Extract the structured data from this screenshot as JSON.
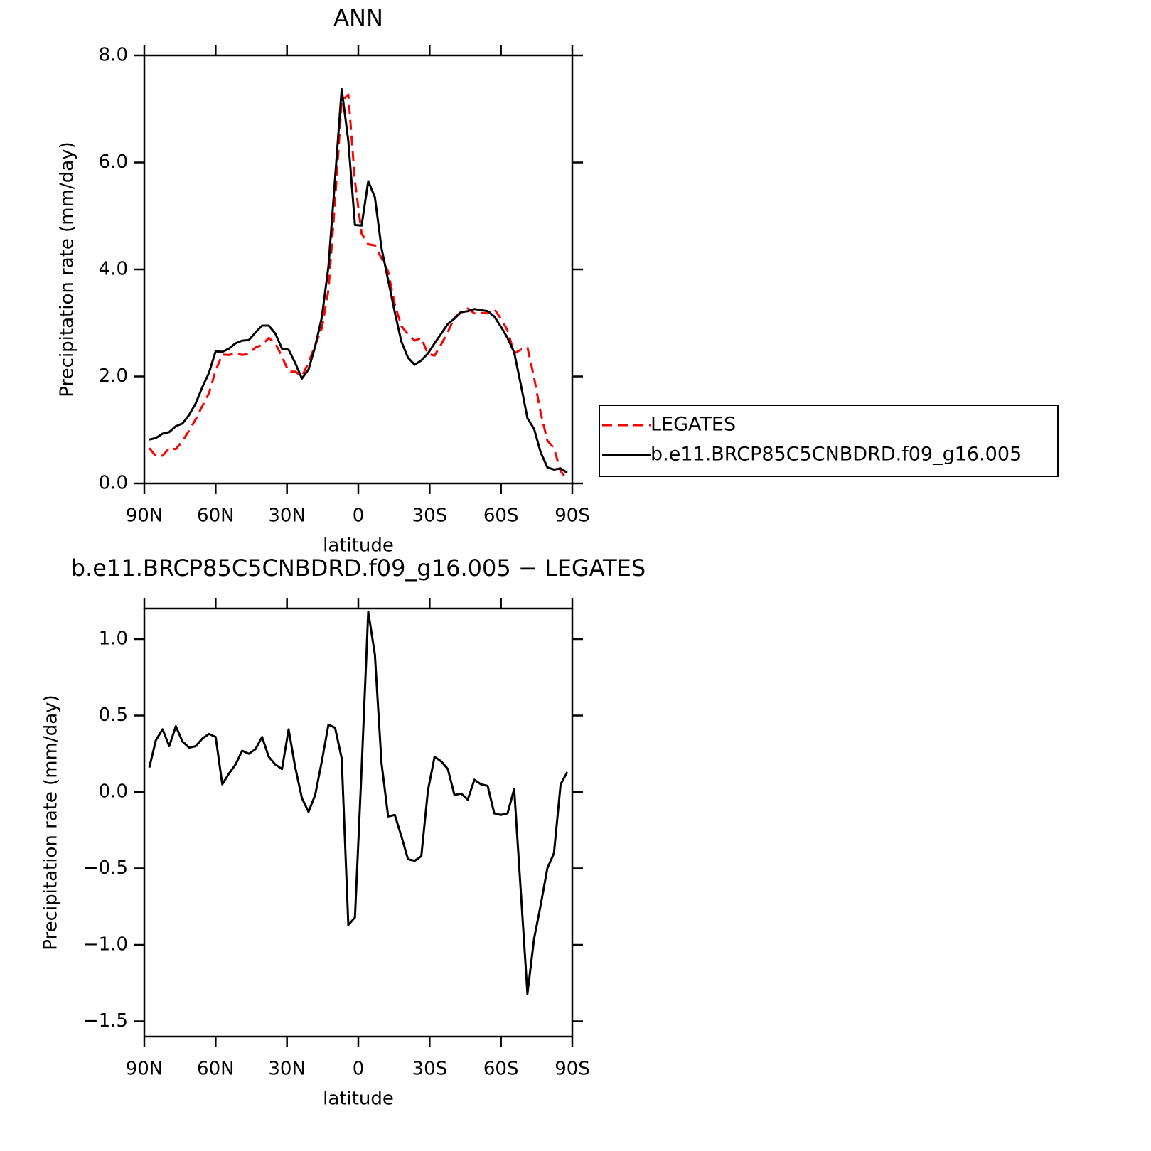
{
  "chart_data": [
    {
      "type": "line",
      "title": "ANN",
      "y_label": "Precipitation rate (mm/day)",
      "x_label": "latitude",
      "xlim": [
        90,
        -90
      ],
      "xticks": [
        {
          "value": 90,
          "label": "90N"
        },
        {
          "value": 60,
          "label": "60N"
        },
        {
          "value": 30,
          "label": "30N"
        },
        0,
        {
          "value": -30,
          "label": "30S"
        },
        {
          "value": -60,
          "label": "60S"
        },
        {
          "value": -90,
          "label": "90S"
        }
      ],
      "ylim": [
        0,
        8
      ],
      "yticks": [
        {
          "value": 0,
          "label": "0.0"
        },
        {
          "value": 2,
          "label": "2.0"
        },
        {
          "value": 4,
          "label": "4.0"
        },
        {
          "value": 6,
          "label": "6.0"
        },
        {
          "value": 8,
          "label": "8.0"
        }
      ],
      "legend": "right",
      "x": [
        87.9,
        85.11,
        82.32,
        79.53,
        76.74,
        73.95,
        71.16,
        68.37,
        65.58,
        62.79,
        60.0,
        57.21,
        54.42,
        51.63,
        48.84,
        46.05,
        43.26,
        40.47,
        37.68,
        34.89,
        32.1,
        29.31,
        26.52,
        23.73,
        20.94,
        18.15,
        15.36,
        12.57,
        9.78,
        6.99,
        4.2,
        1.41,
        -1.38,
        -4.17,
        -6.96,
        -9.75,
        -12.54,
        -15.33,
        -18.12,
        -20.91,
        -23.7,
        -26.49,
        -29.28,
        -32.07,
        -34.86,
        -37.65,
        -40.44,
        -43.23,
        -46.02,
        -48.81,
        -51.6,
        -54.39,
        -57.18,
        -59.97,
        -62.76,
        -65.55,
        -68.34,
        -71.13,
        -73.92,
        -76.71,
        -79.5,
        -82.29,
        -85.08,
        -87.87
      ],
      "series": [
        {
          "name": "LEGATES",
          "color": "#ff0000",
          "dash": "dashed",
          "values": [
            0.66,
            0.51,
            0.52,
            0.66,
            0.64,
            0.79,
            0.99,
            1.2,
            1.45,
            1.69,
            2.11,
            2.41,
            2.4,
            2.44,
            2.4,
            2.43,
            2.54,
            2.59,
            2.72,
            2.62,
            2.37,
            2.09,
            2.09,
            2.0,
            2.26,
            2.58,
            2.9,
            3.61,
            5.28,
            7.15,
            7.27,
            5.65,
            4.67,
            4.47,
            4.45,
            4.21,
            3.96,
            3.35,
            2.94,
            2.79,
            2.67,
            2.72,
            2.42,
            2.39,
            2.6,
            2.83,
            3.1,
            3.21,
            3.27,
            3.18,
            3.19,
            3.18,
            3.26,
            3.08,
            2.86,
            2.43,
            2.5,
            2.54,
            1.98,
            1.32,
            0.8,
            0.66,
            0.23,
            0.07
          ]
        },
        {
          "name": "b.e11.BRCP85C5CNBDRD.f09_g16.005",
          "color": "#000000",
          "dash": "solid",
          "values": [
            0.82,
            0.85,
            0.93,
            0.96,
            1.07,
            1.12,
            1.28,
            1.5,
            1.8,
            2.07,
            2.47,
            2.46,
            2.52,
            2.62,
            2.67,
            2.68,
            2.82,
            2.95,
            2.95,
            2.8,
            2.52,
            2.5,
            2.25,
            1.96,
            2.13,
            2.56,
            3.1,
            4.05,
            5.7,
            7.37,
            6.4,
            4.83,
            4.82,
            5.65,
            5.35,
            4.4,
            3.8,
            3.2,
            2.65,
            2.35,
            2.22,
            2.3,
            2.43,
            2.62,
            2.8,
            2.98,
            3.08,
            3.2,
            3.22,
            3.26,
            3.24,
            3.22,
            3.12,
            2.93,
            2.72,
            2.45,
            1.85,
            1.22,
            1.02,
            0.58,
            0.3,
            0.26,
            0.28,
            0.2
          ]
        }
      ]
    },
    {
      "type": "line",
      "title": "b.e11.BRCP85C5CNBDRD.f09_g16.005 − LEGATES",
      "y_label": "Precipitation rate (mm/day)",
      "x_label": "latitude",
      "xlim": [
        90,
        -90
      ],
      "xticks": [
        {
          "value": 90,
          "label": "90N"
        },
        {
          "value": 60,
          "label": "60N"
        },
        {
          "value": 30,
          "label": "30N"
        },
        0,
        {
          "value": -30,
          "label": "30S"
        },
        {
          "value": -60,
          "label": "60S"
        },
        {
          "value": -90,
          "label": "90S"
        }
      ],
      "ylim": [
        -1.6,
        1.2
      ],
      "yticks": [
        {
          "value": -1.5,
          "label": "−1.5"
        },
        {
          "value": -1,
          "label": "−1.0"
        },
        {
          "value": -0.5,
          "label": "−0.5"
        },
        {
          "value": 0,
          "label": "0.0"
        },
        {
          "value": 0.5,
          "label": "0.5"
        },
        {
          "value": 1,
          "label": "1.0"
        }
      ],
      "color": "#000000",
      "x": [
        87.9,
        85.11,
        82.32,
        79.53,
        76.74,
        73.95,
        71.16,
        68.37,
        65.58,
        62.79,
        60.0,
        57.21,
        54.42,
        51.63,
        48.84,
        46.05,
        43.26,
        40.47,
        37.68,
        34.89,
        32.1,
        29.31,
        26.52,
        23.73,
        20.94,
        18.15,
        15.36,
        12.57,
        9.78,
        6.99,
        4.2,
        1.41,
        -1.38,
        -4.17,
        -6.96,
        -9.75,
        -12.54,
        -15.33,
        -18.12,
        -20.91,
        -23.7,
        -26.49,
        -29.28,
        -32.07,
        -34.86,
        -37.65,
        -40.44,
        -43.23,
        -46.02,
        -48.81,
        -51.6,
        -54.39,
        -57.18,
        -59.97,
        -62.76,
        -65.55,
        -68.34,
        -71.13,
        -73.92,
        -76.71,
        -79.5,
        -82.29,
        -85.08,
        -87.87
      ],
      "values": [
        0.16,
        0.34,
        0.41,
        0.3,
        0.43,
        0.33,
        0.29,
        0.3,
        0.35,
        0.38,
        0.36,
        0.05,
        0.12,
        0.18,
        0.27,
        0.25,
        0.28,
        0.36,
        0.23,
        0.18,
        0.15,
        0.41,
        0.16,
        -0.04,
        -0.13,
        -0.02,
        0.2,
        0.44,
        0.42,
        0.22,
        -0.87,
        -0.82,
        0.15,
        1.18,
        0.9,
        0.19,
        -0.16,
        -0.15,
        -0.29,
        -0.44,
        -0.45,
        -0.42,
        0.01,
        0.23,
        0.2,
        0.15,
        -0.02,
        -0.01,
        -0.05,
        0.08,
        0.05,
        0.04,
        -0.14,
        -0.15,
        -0.14,
        0.02,
        -0.65,
        -1.32,
        -0.96,
        -0.74,
        -0.5,
        -0.4,
        0.05,
        0.13
      ]
    }
  ]
}
